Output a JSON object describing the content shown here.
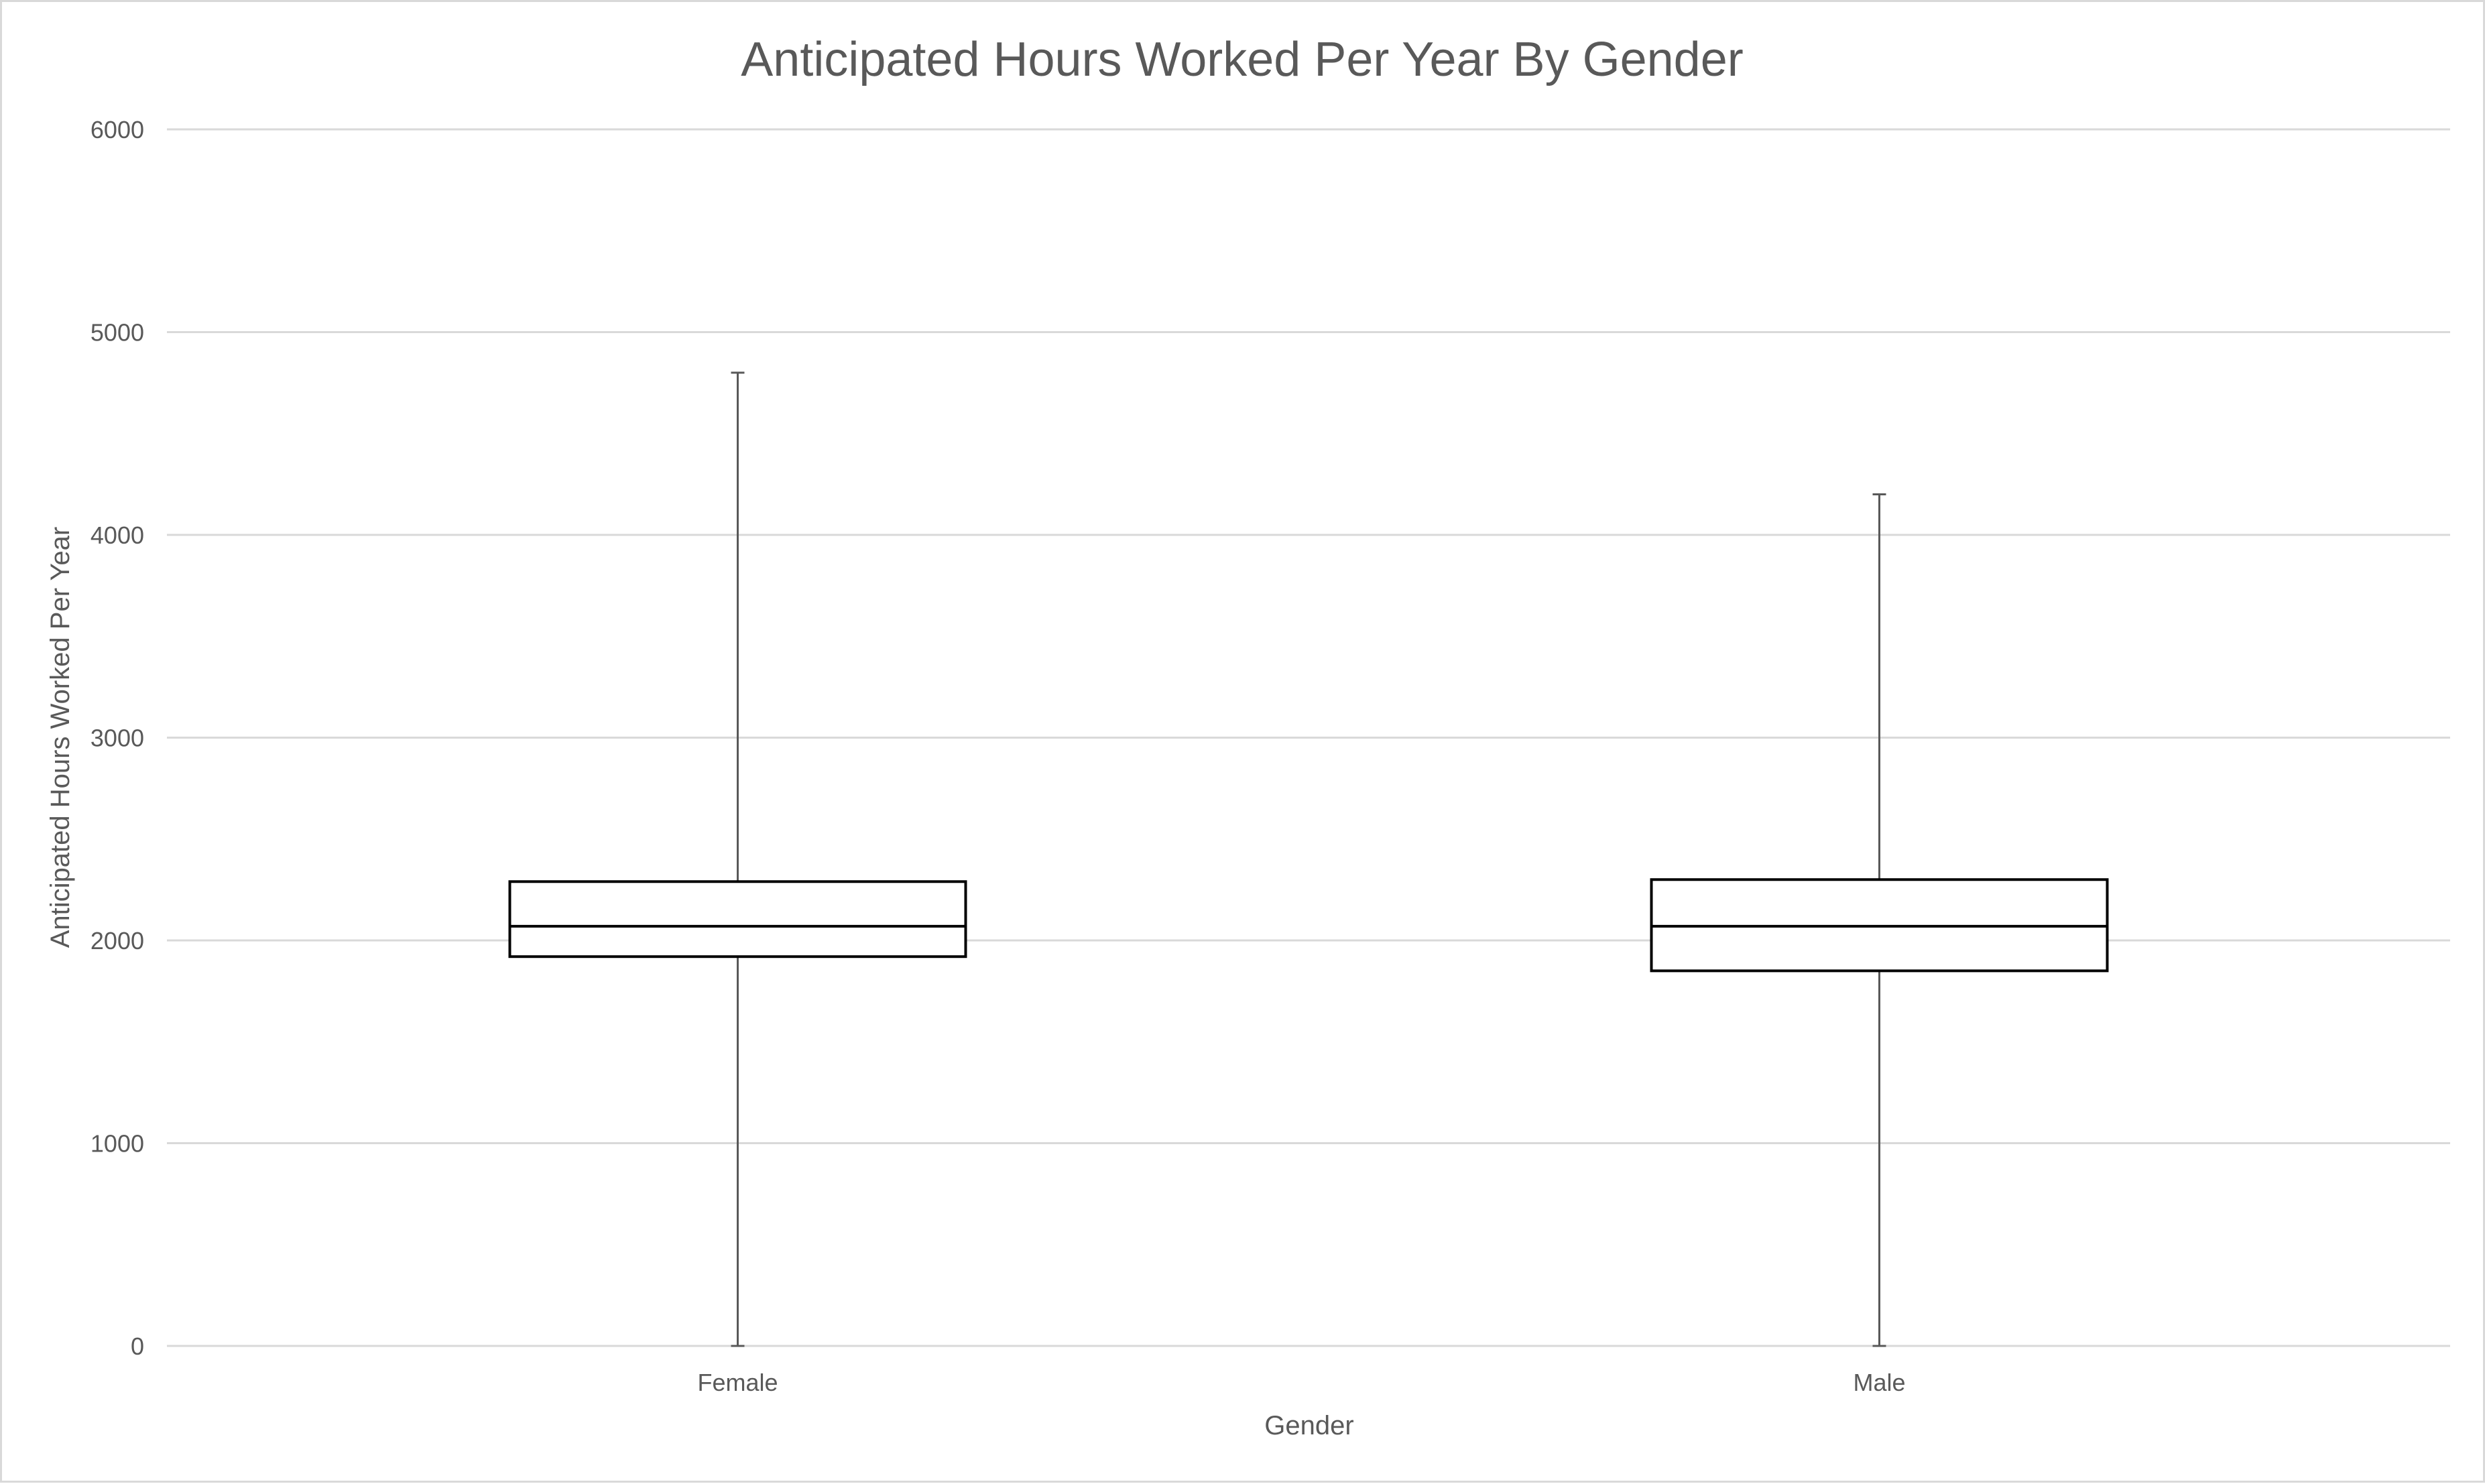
{
  "chart_data": {
    "type": "box",
    "title": "Anticipated Hours Worked Per Year By Gender",
    "xlabel": "Gender",
    "ylabel": "Anticipated Hours Worked Per Year",
    "ylim": [
      0,
      6000
    ],
    "yticks": [
      0,
      1000,
      2000,
      3000,
      4000,
      5000,
      6000
    ],
    "grid": true,
    "categories": [
      "Female",
      "Male"
    ],
    "boxes": [
      {
        "category": "Female",
        "min": 0,
        "q1": 1920,
        "median": 2070,
        "q3": 2290,
        "max": 4800
      },
      {
        "category": "Male",
        "min": 0,
        "q1": 1850,
        "median": 2070,
        "q3": 2300,
        "max": 4200
      }
    ],
    "colors": {
      "grid": "#d9d9d9",
      "axis_text": "#595959",
      "box_stroke": "#000000",
      "whisker": "#595959"
    }
  }
}
